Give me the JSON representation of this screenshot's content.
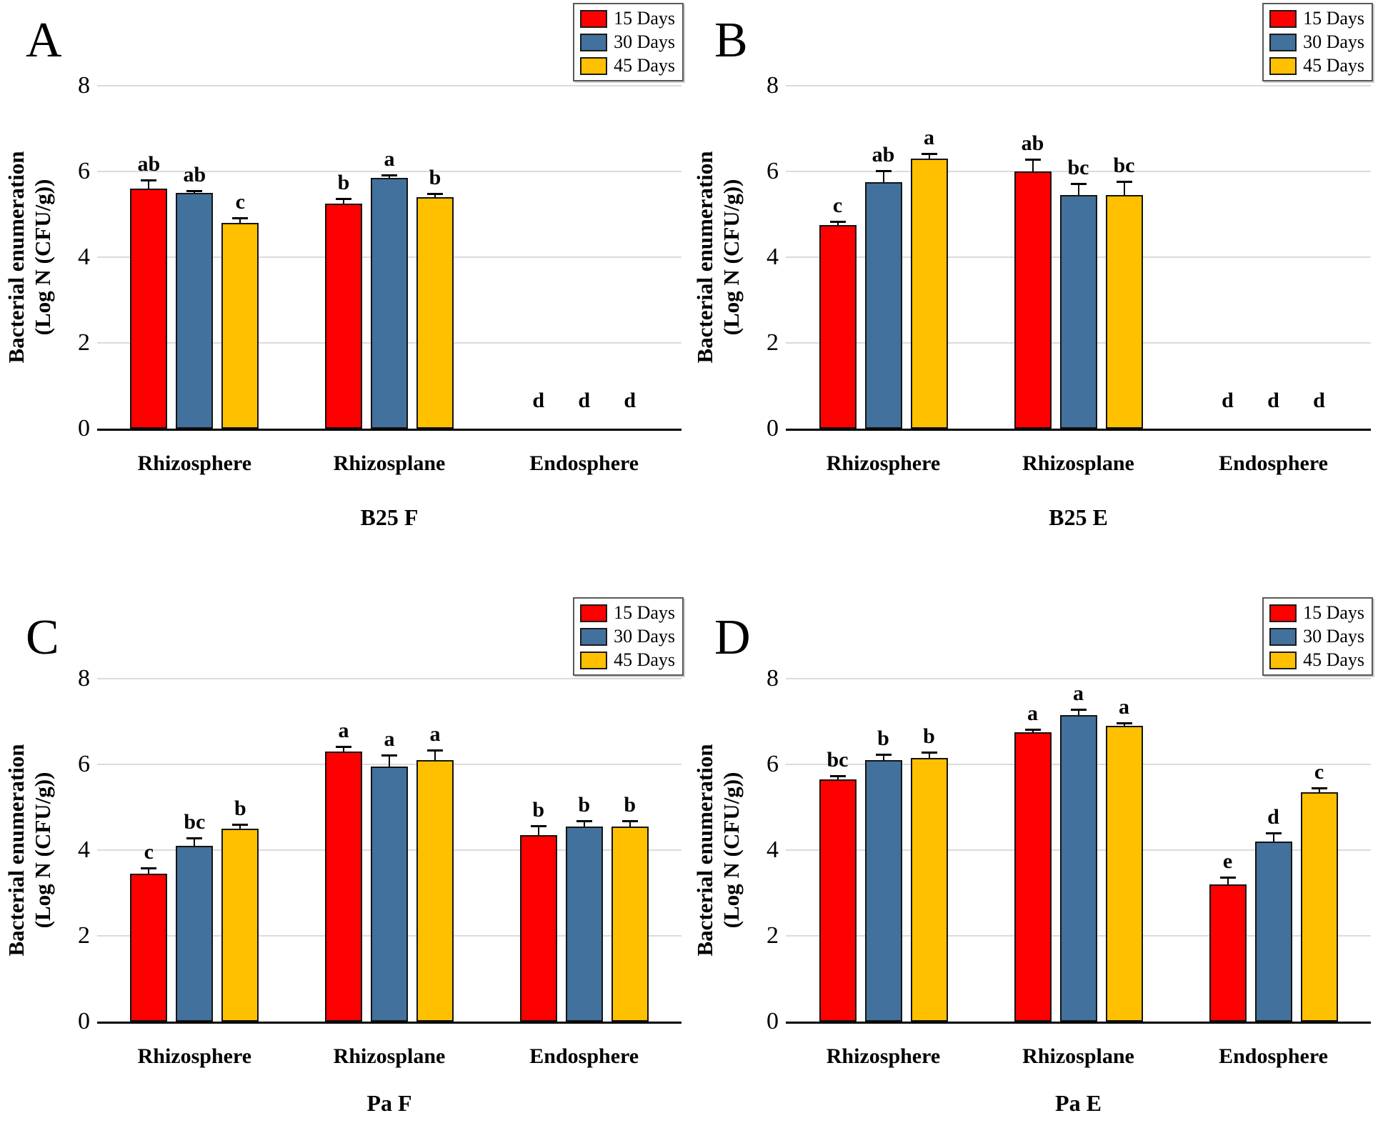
{
  "figure": {
    "y_axis_label": {
      "line1": "Bacterial enumeration",
      "line2": "(Log N (CFU/g))"
    },
    "legend": [
      {
        "label": "15 Days",
        "color": "#FF0000"
      },
      {
        "label": "30 Days",
        "color": "#41719C"
      },
      {
        "label": "45 Days",
        "color": "#FFC000"
      }
    ],
    "gridline_color": "#DBDBDB",
    "bar_border_color": "#141414"
  },
  "chart_data": [
    {
      "type": "bar",
      "panel": "A",
      "title": "B25 F",
      "xlabel": "",
      "ylabel": "Bacterial enumeration (Log N (CFU/g))",
      "ylim": [
        0,
        8
      ],
      "yticks": [
        0,
        2,
        4,
        6,
        8
      ],
      "grid": true,
      "legend_position": "top-right",
      "categories": [
        "Rhizosphere",
        "Rhizosplane",
        "Endosphere"
      ],
      "series": [
        {
          "name": "15 Days",
          "color": "#FF0000",
          "values": [
            5.6,
            5.25,
            0
          ],
          "errors": [
            0.18,
            0.1,
            0
          ],
          "sig_letters": [
            "ab",
            "b",
            "d"
          ]
        },
        {
          "name": "30 Days",
          "color": "#41719C",
          "values": [
            5.5,
            5.85,
            0
          ],
          "errors": [
            0.04,
            0.05,
            0
          ],
          "sig_letters": [
            "ab",
            "a",
            "d"
          ]
        },
        {
          "name": "45 Days",
          "color": "#FFC000",
          "values": [
            4.8,
            5.4,
            0
          ],
          "errors": [
            0.1,
            0.07,
            0
          ],
          "sig_letters": [
            "c",
            "b",
            "d"
          ]
        }
      ]
    },
    {
      "type": "bar",
      "panel": "B",
      "title": "B25 E",
      "xlabel": "",
      "ylabel": "Bacterial enumeration (Log N (CFU/g))",
      "ylim": [
        0,
        8
      ],
      "yticks": [
        0,
        2,
        4,
        6,
        8
      ],
      "grid": true,
      "legend_position": "top-right",
      "categories": [
        "Rhizosphere",
        "Rhizosplane",
        "Endosphere"
      ],
      "series": [
        {
          "name": "15 Days",
          "color": "#FF0000",
          "values": [
            4.75,
            6.0,
            0
          ],
          "errors": [
            0.07,
            0.27,
            0
          ],
          "sig_letters": [
            "c",
            "ab",
            "d"
          ]
        },
        {
          "name": "30 Days",
          "color": "#41719C",
          "values": [
            5.75,
            5.45,
            0
          ],
          "errors": [
            0.25,
            0.25,
            0
          ],
          "sig_letters": [
            "ab",
            "bc",
            "d"
          ]
        },
        {
          "name": "45 Days",
          "color": "#FFC000",
          "values": [
            6.3,
            5.45,
            0
          ],
          "errors": [
            0.1,
            0.3,
            0
          ],
          "sig_letters": [
            "a",
            "bc",
            "d"
          ]
        }
      ]
    },
    {
      "type": "bar",
      "panel": "C",
      "title": "Pa F",
      "xlabel": "",
      "ylabel": "Bacterial enumeration (Log N (CFU/g))",
      "ylim": [
        0,
        8
      ],
      "yticks": [
        0,
        2,
        4,
        6,
        8
      ],
      "grid": true,
      "legend_position": "top-right",
      "categories": [
        "Rhizosphere",
        "Rhizosplane",
        "Endosphere"
      ],
      "series": [
        {
          "name": "15 Days",
          "color": "#FF0000",
          "values": [
            3.45,
            6.3,
            4.35
          ],
          "errors": [
            0.12,
            0.1,
            0.2
          ],
          "sig_letters": [
            "c",
            "a",
            "b"
          ]
        },
        {
          "name": "30 Days",
          "color": "#41719C",
          "values": [
            4.1,
            5.95,
            4.55
          ],
          "errors": [
            0.17,
            0.25,
            0.12
          ],
          "sig_letters": [
            "bc",
            "a",
            "b"
          ]
        },
        {
          "name": "45 Days",
          "color": "#FFC000",
          "values": [
            4.5,
            6.1,
            4.55
          ],
          "errors": [
            0.08,
            0.22,
            0.12
          ],
          "sig_letters": [
            "b",
            "a",
            "b"
          ]
        }
      ]
    },
    {
      "type": "bar",
      "panel": "D",
      "title": "Pa E",
      "xlabel": "",
      "ylabel": "Bacterial enumeration (Log N (CFU/g))",
      "ylim": [
        0,
        8
      ],
      "yticks": [
        0,
        2,
        4,
        6,
        8
      ],
      "grid": true,
      "legend_position": "top-right",
      "categories": [
        "Rhizosphere",
        "Rhizosplane",
        "Endosphere"
      ],
      "series": [
        {
          "name": "15 Days",
          "color": "#FF0000",
          "values": [
            5.65,
            6.75,
            3.2
          ],
          "errors": [
            0.07,
            0.05,
            0.15
          ],
          "sig_letters": [
            "bc",
            "a",
            "e"
          ]
        },
        {
          "name": "30 Days",
          "color": "#41719C",
          "values": [
            6.1,
            7.15,
            4.2
          ],
          "errors": [
            0.12,
            0.12,
            0.18
          ],
          "sig_letters": [
            "b",
            "a",
            "d"
          ]
        },
        {
          "name": "45 Days",
          "color": "#FFC000",
          "values": [
            6.15,
            6.9,
            5.35
          ],
          "errors": [
            0.12,
            0.05,
            0.08
          ],
          "sig_letters": [
            "b",
            "a",
            "c"
          ]
        }
      ]
    }
  ]
}
